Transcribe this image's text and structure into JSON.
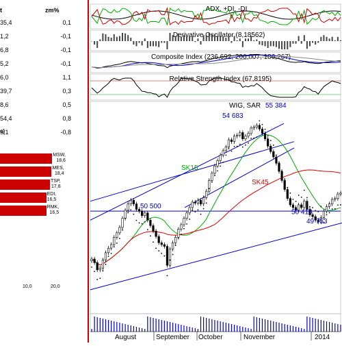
{
  "quotes": {
    "change_header": "zm%",
    "header_fragment": "t",
    "rows": [
      {
        "price": "35,4",
        "change": "0,1"
      },
      {
        "price": "1,2",
        "change": "-0,1"
      },
      {
        "price": "6,8",
        "change": "-0,1"
      },
      {
        "price": "5,2",
        "change": "-0,1"
      },
      {
        "price": "6,0",
        "change": "1,1"
      },
      {
        "price": "39,7",
        "change": "0,3"
      },
      {
        "price": "8,6",
        "change": "0,5"
      },
      {
        "price": "54,4",
        "change": "0,8"
      },
      {
        "price": "9,1",
        "change": "-0,8"
      }
    ]
  },
  "weights": {
    "title_fragment": "s)",
    "colors": {
      "bar": "#cc0000"
    },
    "axis_ticks": [
      {
        "label": "10,0",
        "value": 10
      },
      {
        "label": "20,0",
        "value": 20
      }
    ],
    "bars": [
      {
        "name": "MSW,",
        "value_label": "18,6",
        "value": 18.6
      },
      {
        "name": "MES,",
        "value_label": "18,4",
        "value": 18.4
      },
      {
        "name": "TSP,",
        "value_label": "17,8",
        "value": 17.8
      },
      {
        "name": "EDI,",
        "value_label": "16,5",
        "value": 16.5
      },
      {
        "name": "RMK,",
        "value_label": "16,5",
        "value": 16.5
      }
    ]
  },
  "chart_data": {
    "type": "candlestick",
    "title": "WIG, SAR",
    "indicators": [
      {
        "label": "ADX, +DI, -DI"
      },
      {
        "label": "Derivative Oscillator (8,18562)"
      },
      {
        "label": "Composite Index (236,692, 200,007, 180,267)"
      },
      {
        "label": "Relative Strength Index (67,8195)"
      }
    ],
    "months": [
      "August",
      "September",
      "October",
      "November",
      "2014"
    ],
    "annotations": [
      "55 384",
      "54 683",
      "50 500",
      "50 410",
      "49 753"
    ],
    "moving_averages": [
      {
        "name": "SK15",
        "color": "#00aa00"
      },
      {
        "name": "SK45",
        "color": "#dd0000"
      }
    ],
    "colors": {
      "trendline": "#0000cc",
      "candles": "#000000",
      "sar": "#000000",
      "volume": "#0000cc"
    },
    "series": [
      {
        "name": "WIG",
        "close": [
          47850,
          47650,
          47250,
          47350,
          47800,
          48200,
          48450,
          48650,
          49050,
          49300,
          49600,
          50100,
          50550,
          50900,
          51100,
          50900,
          50600,
          50500,
          50250,
          50400,
          50000,
          49700,
          49400,
          49100,
          48750,
          48650,
          48550,
          47500,
          48400,
          48750,
          49050,
          49500,
          49750,
          50100,
          50400,
          50700,
          51000,
          50950,
          51100,
          50900,
          51250,
          51600,
          52200,
          52600,
          53000,
          53300,
          53600,
          53850,
          54050,
          54450,
          54350,
          54650,
          54700,
          54850,
          54500,
          54650,
          54800,
          55100,
          55150,
          55250,
          55050,
          54800,
          54500,
          54100,
          53800,
          53500,
          53150,
          52700,
          52200,
          51700,
          51200,
          50850,
          50700,
          50550,
          50850,
          50700,
          51050,
          50600,
          50300,
          50200,
          50000,
          49900,
          50150,
          50500,
          50750,
          50900,
          51150,
          51200,
          51450,
          51500
        ]
      }
    ],
    "y_axis_labels": []
  }
}
